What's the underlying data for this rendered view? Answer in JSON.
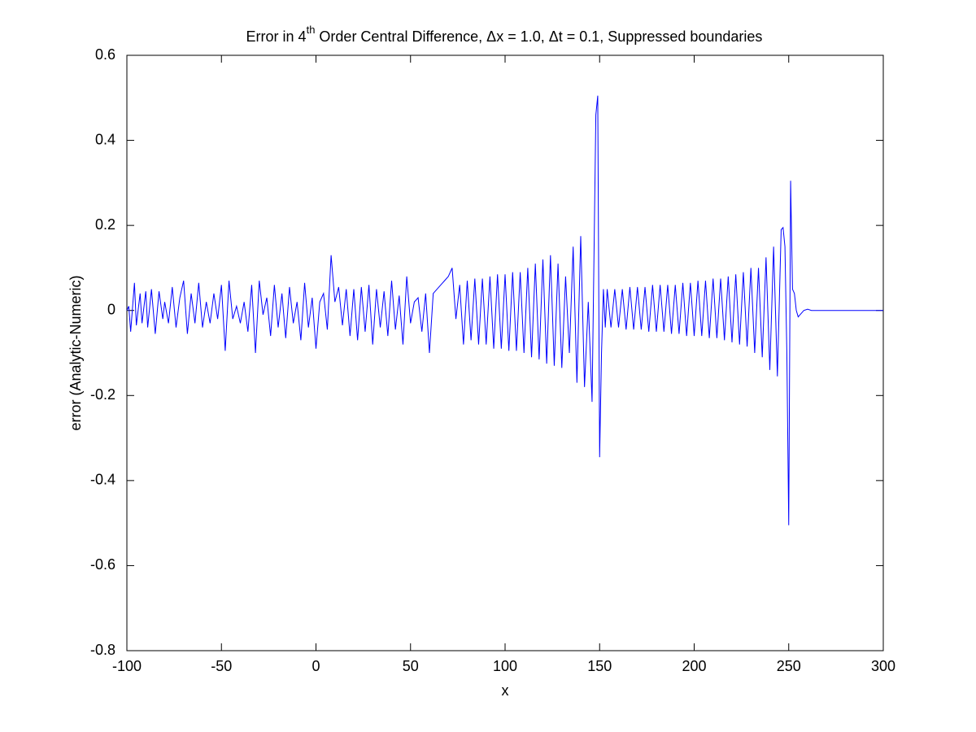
{
  "chart_data": {
    "type": "line",
    "title": {
      "main": "Error in 4",
      "superscript": "th",
      "rest": " Order Central Difference, Δx = 1.0, Δt = 0.1, Suppressed boundaries"
    },
    "x_label": "x",
    "y_label": "error (Analytic-Numeric)",
    "xlim": [
      -100,
      300
    ],
    "ylim": [
      -0.8,
      0.6
    ],
    "xticks": [
      -100,
      -50,
      0,
      50,
      100,
      150,
      200,
      250,
      300
    ],
    "yticks": [
      -0.8,
      -0.6,
      -0.4,
      -0.2,
      0,
      0.2,
      0.4,
      0.6
    ],
    "grid": false,
    "x": [
      -100,
      -99,
      -98,
      -96,
      -95,
      -93,
      -92,
      -90,
      -89,
      -87,
      -85,
      -83,
      -81,
      -80,
      -78,
      -76,
      -74,
      -72,
      -70,
      -68,
      -66,
      -64,
      -62,
      -60,
      -58,
      -56,
      -54,
      -52,
      -50,
      -48,
      -46,
      -44,
      -42,
      -40,
      -38,
      -36,
      -34,
      -32,
      -30,
      -28,
      -26,
      -24,
      -22,
      -20,
      -18,
      -16,
      -14,
      -12,
      -10,
      -8,
      -6,
      -4,
      -2,
      0,
      2,
      4,
      6,
      8,
      10,
      12,
      14,
      16,
      18,
      20,
      22,
      24,
      26,
      28,
      30,
      32,
      34,
      36,
      38,
      40,
      42,
      44,
      46,
      48,
      50,
      52,
      54,
      56,
      58,
      60,
      62,
      64,
      66,
      68,
      70,
      72,
      74,
      76,
      78,
      80,
      82,
      84,
      86,
      88,
      90,
      92,
      94,
      96,
      98,
      100,
      102,
      104,
      106,
      108,
      110,
      112,
      114,
      116,
      118,
      120,
      122,
      124,
      126,
      128,
      130,
      132,
      134,
      136,
      138,
      140,
      142,
      144,
      146,
      148,
      149,
      150,
      151,
      152,
      153,
      154,
      156,
      158,
      160,
      162,
      164,
      166,
      168,
      170,
      172,
      174,
      176,
      178,
      180,
      182,
      184,
      186,
      188,
      190,
      192,
      194,
      196,
      198,
      200,
      202,
      204,
      206,
      208,
      210,
      212,
      214,
      216,
      218,
      220,
      222,
      224,
      226,
      228,
      230,
      232,
      234,
      236,
      238,
      240,
      242,
      244,
      246,
      247,
      248,
      249,
      250,
      251,
      252,
      253,
      254,
      255,
      256,
      258,
      260,
      262,
      300
    ],
    "series": [
      {
        "color": "#0000ff",
        "values": [
          0.0,
          0.01,
          -0.05,
          0.065,
          -0.035,
          0.04,
          -0.03,
          0.045,
          -0.04,
          0.05,
          -0.055,
          0.045,
          -0.02,
          0.02,
          -0.03,
          0.055,
          -0.04,
          0.03,
          0.07,
          -0.055,
          0.04,
          -0.03,
          0.065,
          -0.04,
          0.02,
          -0.03,
          0.04,
          -0.02,
          0.06,
          -0.095,
          0.07,
          -0.02,
          0.01,
          -0.03,
          0.02,
          -0.05,
          0.06,
          -0.1,
          0.07,
          -0.01,
          0.03,
          -0.06,
          0.06,
          -0.04,
          0.04,
          -0.065,
          0.055,
          -0.03,
          0.02,
          -0.07,
          0.065,
          -0.04,
          0.03,
          -0.09,
          0.02,
          0.04,
          -0.045,
          0.13,
          0.02,
          0.055,
          -0.035,
          0.05,
          -0.06,
          0.05,
          -0.07,
          0.055,
          -0.05,
          0.06,
          -0.08,
          0.05,
          -0.04,
          0.045,
          -0.06,
          0.07,
          -0.045,
          0.035,
          -0.08,
          0.08,
          -0.03,
          0.02,
          0.03,
          -0.05,
          0.04,
          -0.1,
          0.04,
          0.05,
          0.06,
          0.07,
          0.08,
          0.1,
          -0.02,
          0.06,
          -0.08,
          0.07,
          -0.07,
          0.075,
          -0.08,
          0.075,
          -0.08,
          0.08,
          -0.09,
          0.085,
          -0.09,
          0.085,
          -0.095,
          0.09,
          -0.095,
          0.09,
          -0.1,
          0.1,
          -0.11,
          0.11,
          -0.115,
          0.12,
          -0.125,
          0.13,
          -0.13,
          0.11,
          -0.135,
          0.08,
          -0.1,
          0.15,
          -0.17,
          0.175,
          -0.18,
          0.02,
          -0.215,
          0.46,
          0.505,
          -0.345,
          -0.1,
          0.05,
          -0.04,
          0.05,
          -0.04,
          0.05,
          -0.04,
          0.05,
          -0.045,
          0.055,
          -0.045,
          0.055,
          -0.045,
          0.055,
          -0.05,
          0.06,
          -0.05,
          0.06,
          -0.05,
          0.06,
          -0.055,
          0.06,
          -0.055,
          0.065,
          -0.06,
          0.065,
          -0.06,
          0.07,
          -0.06,
          0.07,
          -0.065,
          0.075,
          -0.065,
          0.075,
          -0.07,
          0.08,
          -0.075,
          0.085,
          -0.08,
          0.09,
          -0.085,
          0.1,
          -0.1,
          0.1,
          -0.11,
          0.125,
          -0.14,
          0.15,
          -0.155,
          0.19,
          0.195,
          0.15,
          -0.1,
          -0.505,
          0.305,
          0.05,
          0.04,
          0.0,
          -0.015,
          -0.01,
          0.0,
          0.003,
          0.0,
          0.0
        ]
      }
    ]
  }
}
